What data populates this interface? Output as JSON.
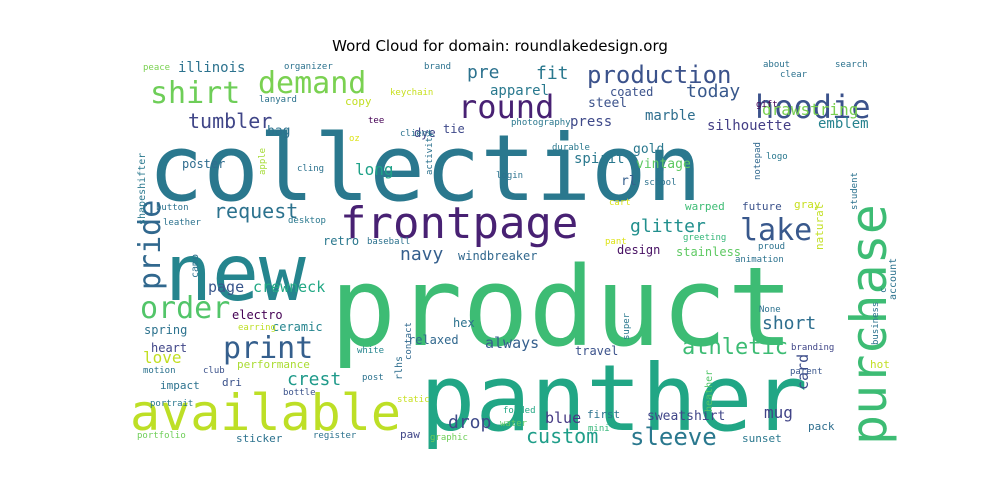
{
  "chart_data": {
    "type": "wordcloud",
    "title": "Word Cloud for domain: roundlakedesign.org",
    "words": [
      {
        "text": "collection",
        "size": 92,
        "color": "#2a788e"
      },
      {
        "text": "product",
        "size": 110,
        "color": "#3dbc74"
      },
      {
        "text": "panther",
        "size": 92,
        "color": "#21a685"
      },
      {
        "text": "new",
        "size": 78,
        "color": "#25858e"
      },
      {
        "text": "available",
        "size": 50,
        "color": "#bddf26"
      },
      {
        "text": "purchase",
        "size": 50,
        "color": "#3dbc74"
      },
      {
        "text": "frontpage",
        "size": 44,
        "color": "#482173"
      },
      {
        "text": "hoodie",
        "size": 32,
        "color": "#3b528b"
      },
      {
        "text": "round",
        "size": 32,
        "color": "#482173"
      },
      {
        "text": "demand",
        "size": 30,
        "color": "#7ad151"
      },
      {
        "text": "shirt",
        "size": 30,
        "color": "#6ece58"
      },
      {
        "text": "print",
        "size": 30,
        "color": "#355f8d"
      },
      {
        "text": "pride",
        "size": 30,
        "color": "#31688e"
      },
      {
        "text": "lake",
        "size": 30,
        "color": "#38588c"
      },
      {
        "text": "order",
        "size": 30,
        "color": "#52c569"
      },
      {
        "text": "sleeve",
        "size": 24,
        "color": "#2a788e"
      },
      {
        "text": "production",
        "size": 24,
        "color": "#3b528b"
      },
      {
        "text": "athletic",
        "size": 22,
        "color": "#3dbc74"
      },
      {
        "text": "tumbler",
        "size": 20,
        "color": "#404688"
      },
      {
        "text": "request",
        "size": 20,
        "color": "#2c728e"
      },
      {
        "text": "custom",
        "size": 20,
        "color": "#1f9e89"
      },
      {
        "text": "crest",
        "size": 18,
        "color": "#1f9a8a"
      },
      {
        "text": "glitter",
        "size": 18,
        "color": "#218f8d"
      },
      {
        "text": "navy",
        "size": 18,
        "color": "#355f8d"
      },
      {
        "text": "drop",
        "size": 18,
        "color": "#3e4989"
      },
      {
        "text": "short",
        "size": 18,
        "color": "#2e6e8e"
      },
      {
        "text": "fit",
        "size": 18,
        "color": "#2a788e"
      },
      {
        "text": "pre",
        "size": 18,
        "color": "#2c728e"
      },
      {
        "text": "today",
        "size": 18,
        "color": "#38588c"
      },
      {
        "text": "drawstring",
        "size": 16,
        "color": "#7ad151"
      },
      {
        "text": "mug",
        "size": 16,
        "color": "#414487"
      },
      {
        "text": "long",
        "size": 16,
        "color": "#1fa188"
      },
      {
        "text": "love",
        "size": 16,
        "color": "#c2df23"
      },
      {
        "text": "crewneck",
        "size": 15,
        "color": "#22a884"
      },
      {
        "text": "page",
        "size": 15,
        "color": "#39568c"
      },
      {
        "text": "card",
        "size": 15,
        "color": "#3d4d8a"
      },
      {
        "text": "blue",
        "size": 15,
        "color": "#443983"
      },
      {
        "text": "always",
        "size": 15,
        "color": "#355f8d"
      },
      {
        "text": "spirit",
        "size": 14,
        "color": "#2a788e"
      },
      {
        "text": "illinois",
        "size": 14,
        "color": "#2c728e"
      },
      {
        "text": "apparel",
        "size": 14,
        "color": "#29798e"
      },
      {
        "text": "silhouette",
        "size": 14,
        "color": "#433e85"
      },
      {
        "text": "emblem",
        "size": 14,
        "color": "#26828e"
      },
      {
        "text": "marble",
        "size": 14,
        "color": "#2e6e8e"
      },
      {
        "text": "press",
        "size": 14,
        "color": "#3e4989"
      },
      {
        "text": "vintage",
        "size": 13,
        "color": "#5ec962"
      },
      {
        "text": "gold",
        "size": 13,
        "color": "#2a788e"
      },
      {
        "text": "bag",
        "size": 13,
        "color": "#2c728e"
      },
      {
        "text": "rl",
        "size": 13,
        "color": "#355f8d"
      },
      {
        "text": "sweatshirt",
        "size": 13,
        "color": "#404688"
      },
      {
        "text": "steel",
        "size": 13,
        "color": "#3b528b"
      },
      {
        "text": "poster",
        "size": 12,
        "color": "#2f6c8e"
      },
      {
        "text": "dye",
        "size": 12,
        "color": "#404688"
      },
      {
        "text": "tie",
        "size": 12,
        "color": "#3e4989"
      },
      {
        "text": "hex",
        "size": 12,
        "color": "#2c728e"
      },
      {
        "text": "relaxed",
        "size": 12,
        "color": "#31688e"
      },
      {
        "text": "travel",
        "size": 12,
        "color": "#3b528b"
      },
      {
        "text": "heart",
        "size": 12,
        "color": "#404688"
      },
      {
        "text": "spring",
        "size": 12,
        "color": "#2c728e"
      },
      {
        "text": "ceramic",
        "size": 12,
        "color": "#25858e"
      },
      {
        "text": "electro",
        "size": 12,
        "color": "#440154"
      },
      {
        "text": "windbreaker",
        "size": 12,
        "color": "#31688e"
      },
      {
        "text": "retro",
        "size": 12,
        "color": "#2a788e"
      },
      {
        "text": "stainless",
        "size": 12,
        "color": "#5ec962"
      },
      {
        "text": "design",
        "size": 12,
        "color": "#471063"
      },
      {
        "text": "coated",
        "size": 12,
        "color": "#3b528b"
      },
      {
        "text": "future",
        "size": 11,
        "color": "#3b528b"
      },
      {
        "text": "gray",
        "size": 11,
        "color": "#c8e020"
      },
      {
        "text": "warped",
        "size": 11,
        "color": "#3dbc74"
      },
      {
        "text": "natural",
        "size": 11,
        "color": "#c2df23"
      },
      {
        "text": "performance",
        "size": 11,
        "color": "#aadc32"
      },
      {
        "text": "impact",
        "size": 11,
        "color": "#2c728e"
      },
      {
        "text": "dri",
        "size": 11,
        "color": "#3b528b"
      },
      {
        "text": "sticker",
        "size": 11,
        "color": "#2c728e"
      },
      {
        "text": "sunset",
        "size": 11,
        "color": "#2a788e"
      },
      {
        "text": "pack",
        "size": 11,
        "color": "#2e6e8e"
      },
      {
        "text": "hot",
        "size": 11,
        "color": "#c2df23"
      },
      {
        "text": "first",
        "size": 11,
        "color": "#2c728e"
      },
      {
        "text": "paw",
        "size": 11,
        "color": "#404688"
      },
      {
        "text": "copy",
        "size": 11,
        "color": "#c2df23"
      },
      {
        "text": "heather",
        "size": 10,
        "color": "#52c569"
      },
      {
        "text": "shapeshifter",
        "size": 10,
        "color": "#2a788e"
      },
      {
        "text": "rlhs",
        "size": 10,
        "color": "#2e6e8e"
      },
      {
        "text": "camo",
        "size": 10,
        "color": "#2c728e"
      },
      {
        "text": "account",
        "size": 10,
        "color": "#2c728e"
      },
      {
        "text": "proud",
        "size": 9,
        "color": "#2c728e"
      },
      {
        "text": "greeting",
        "size": 9,
        "color": "#35b779"
      },
      {
        "text": "animation",
        "size": 9,
        "color": "#2c728e"
      },
      {
        "text": "branding",
        "size": 9,
        "color": "#404688"
      },
      {
        "text": "parent",
        "size": 9,
        "color": "#39568c"
      },
      {
        "text": "student",
        "size": 9,
        "color": "#2c728e"
      },
      {
        "text": "super",
        "size": 9,
        "color": "#2a788e"
      },
      {
        "text": "contact",
        "size": 9,
        "color": "#31688e"
      },
      {
        "text": "white",
        "size": 9,
        "color": "#25858e"
      },
      {
        "text": "post",
        "size": 9,
        "color": "#2c728e"
      },
      {
        "text": "bottle",
        "size": 9,
        "color": "#3b528b"
      },
      {
        "text": "motion",
        "size": 9,
        "color": "#2c728e"
      },
      {
        "text": "club",
        "size": 9,
        "color": "#3b528b"
      },
      {
        "text": "portrait",
        "size": 9,
        "color": "#2a788e"
      },
      {
        "text": "portfolio",
        "size": 9,
        "color": "#6ece58"
      },
      {
        "text": "register",
        "size": 9,
        "color": "#2c728e"
      },
      {
        "text": "graphic",
        "size": 9,
        "color": "#6ece58"
      },
      {
        "text": "water",
        "size": 9,
        "color": "#5ec962"
      },
      {
        "text": "folded",
        "size": 9,
        "color": "#22a884"
      },
      {
        "text": "mini",
        "size": 9,
        "color": "#35b779"
      },
      {
        "text": "static",
        "size": 9,
        "color": "#c8e020"
      },
      {
        "text": "earring",
        "size": 9,
        "color": "#bddf26"
      },
      {
        "text": "leather",
        "size": 9,
        "color": "#2c728e"
      },
      {
        "text": "button",
        "size": 9,
        "color": "#2c728e"
      },
      {
        "text": "desktop",
        "size": 9,
        "color": "#2a788e"
      },
      {
        "text": "baseball",
        "size": 9,
        "color": "#2c728e"
      },
      {
        "text": "pant",
        "size": 9,
        "color": "#dde318"
      },
      {
        "text": "cart",
        "size": 9,
        "color": "#dde318"
      },
      {
        "text": "login",
        "size": 9,
        "color": "#2c728e"
      },
      {
        "text": "durable",
        "size": 9,
        "color": "#2a788e"
      },
      {
        "text": "school",
        "size": 9,
        "color": "#2c728e"
      },
      {
        "text": "logo",
        "size": 9,
        "color": "#2a788e"
      },
      {
        "text": "notepad",
        "size": 9,
        "color": "#31688e"
      },
      {
        "text": "gift",
        "size": 9,
        "color": "#440154"
      },
      {
        "text": "clear",
        "size": 9,
        "color": "#2c728e"
      },
      {
        "text": "about",
        "size": 9,
        "color": "#2c728e"
      },
      {
        "text": "search",
        "size": 9,
        "color": "#2c728e"
      },
      {
        "text": "photography",
        "size": 9,
        "color": "#2a788e"
      },
      {
        "text": "activity",
        "size": 9,
        "color": "#2c728e"
      },
      {
        "text": "client",
        "size": 9,
        "color": "#2c728e"
      },
      {
        "text": "tee",
        "size": 9,
        "color": "#440154"
      },
      {
        "text": "oz",
        "size": 9,
        "color": "#dde318"
      },
      {
        "text": "keychain",
        "size": 9,
        "color": "#c8e020"
      },
      {
        "text": "brand",
        "size": 9,
        "color": "#2c728e"
      },
      {
        "text": "organizer",
        "size": 9,
        "color": "#2c728e"
      },
      {
        "text": "lanyard",
        "size": 9,
        "color": "#2c728e"
      },
      {
        "text": "peace",
        "size": 9,
        "color": "#7ad151"
      },
      {
        "text": "apple",
        "size": 9,
        "color": "#a5db36"
      },
      {
        "text": "cling",
        "size": 9,
        "color": "#2c728e"
      },
      {
        "text": "None",
        "size": 9,
        "color": "#2c728e"
      },
      {
        "text": "business",
        "size": 9,
        "color": "#2c728e"
      },
      {
        "text": "c",
        "size": 9,
        "color": "#2c728e"
      }
    ]
  }
}
